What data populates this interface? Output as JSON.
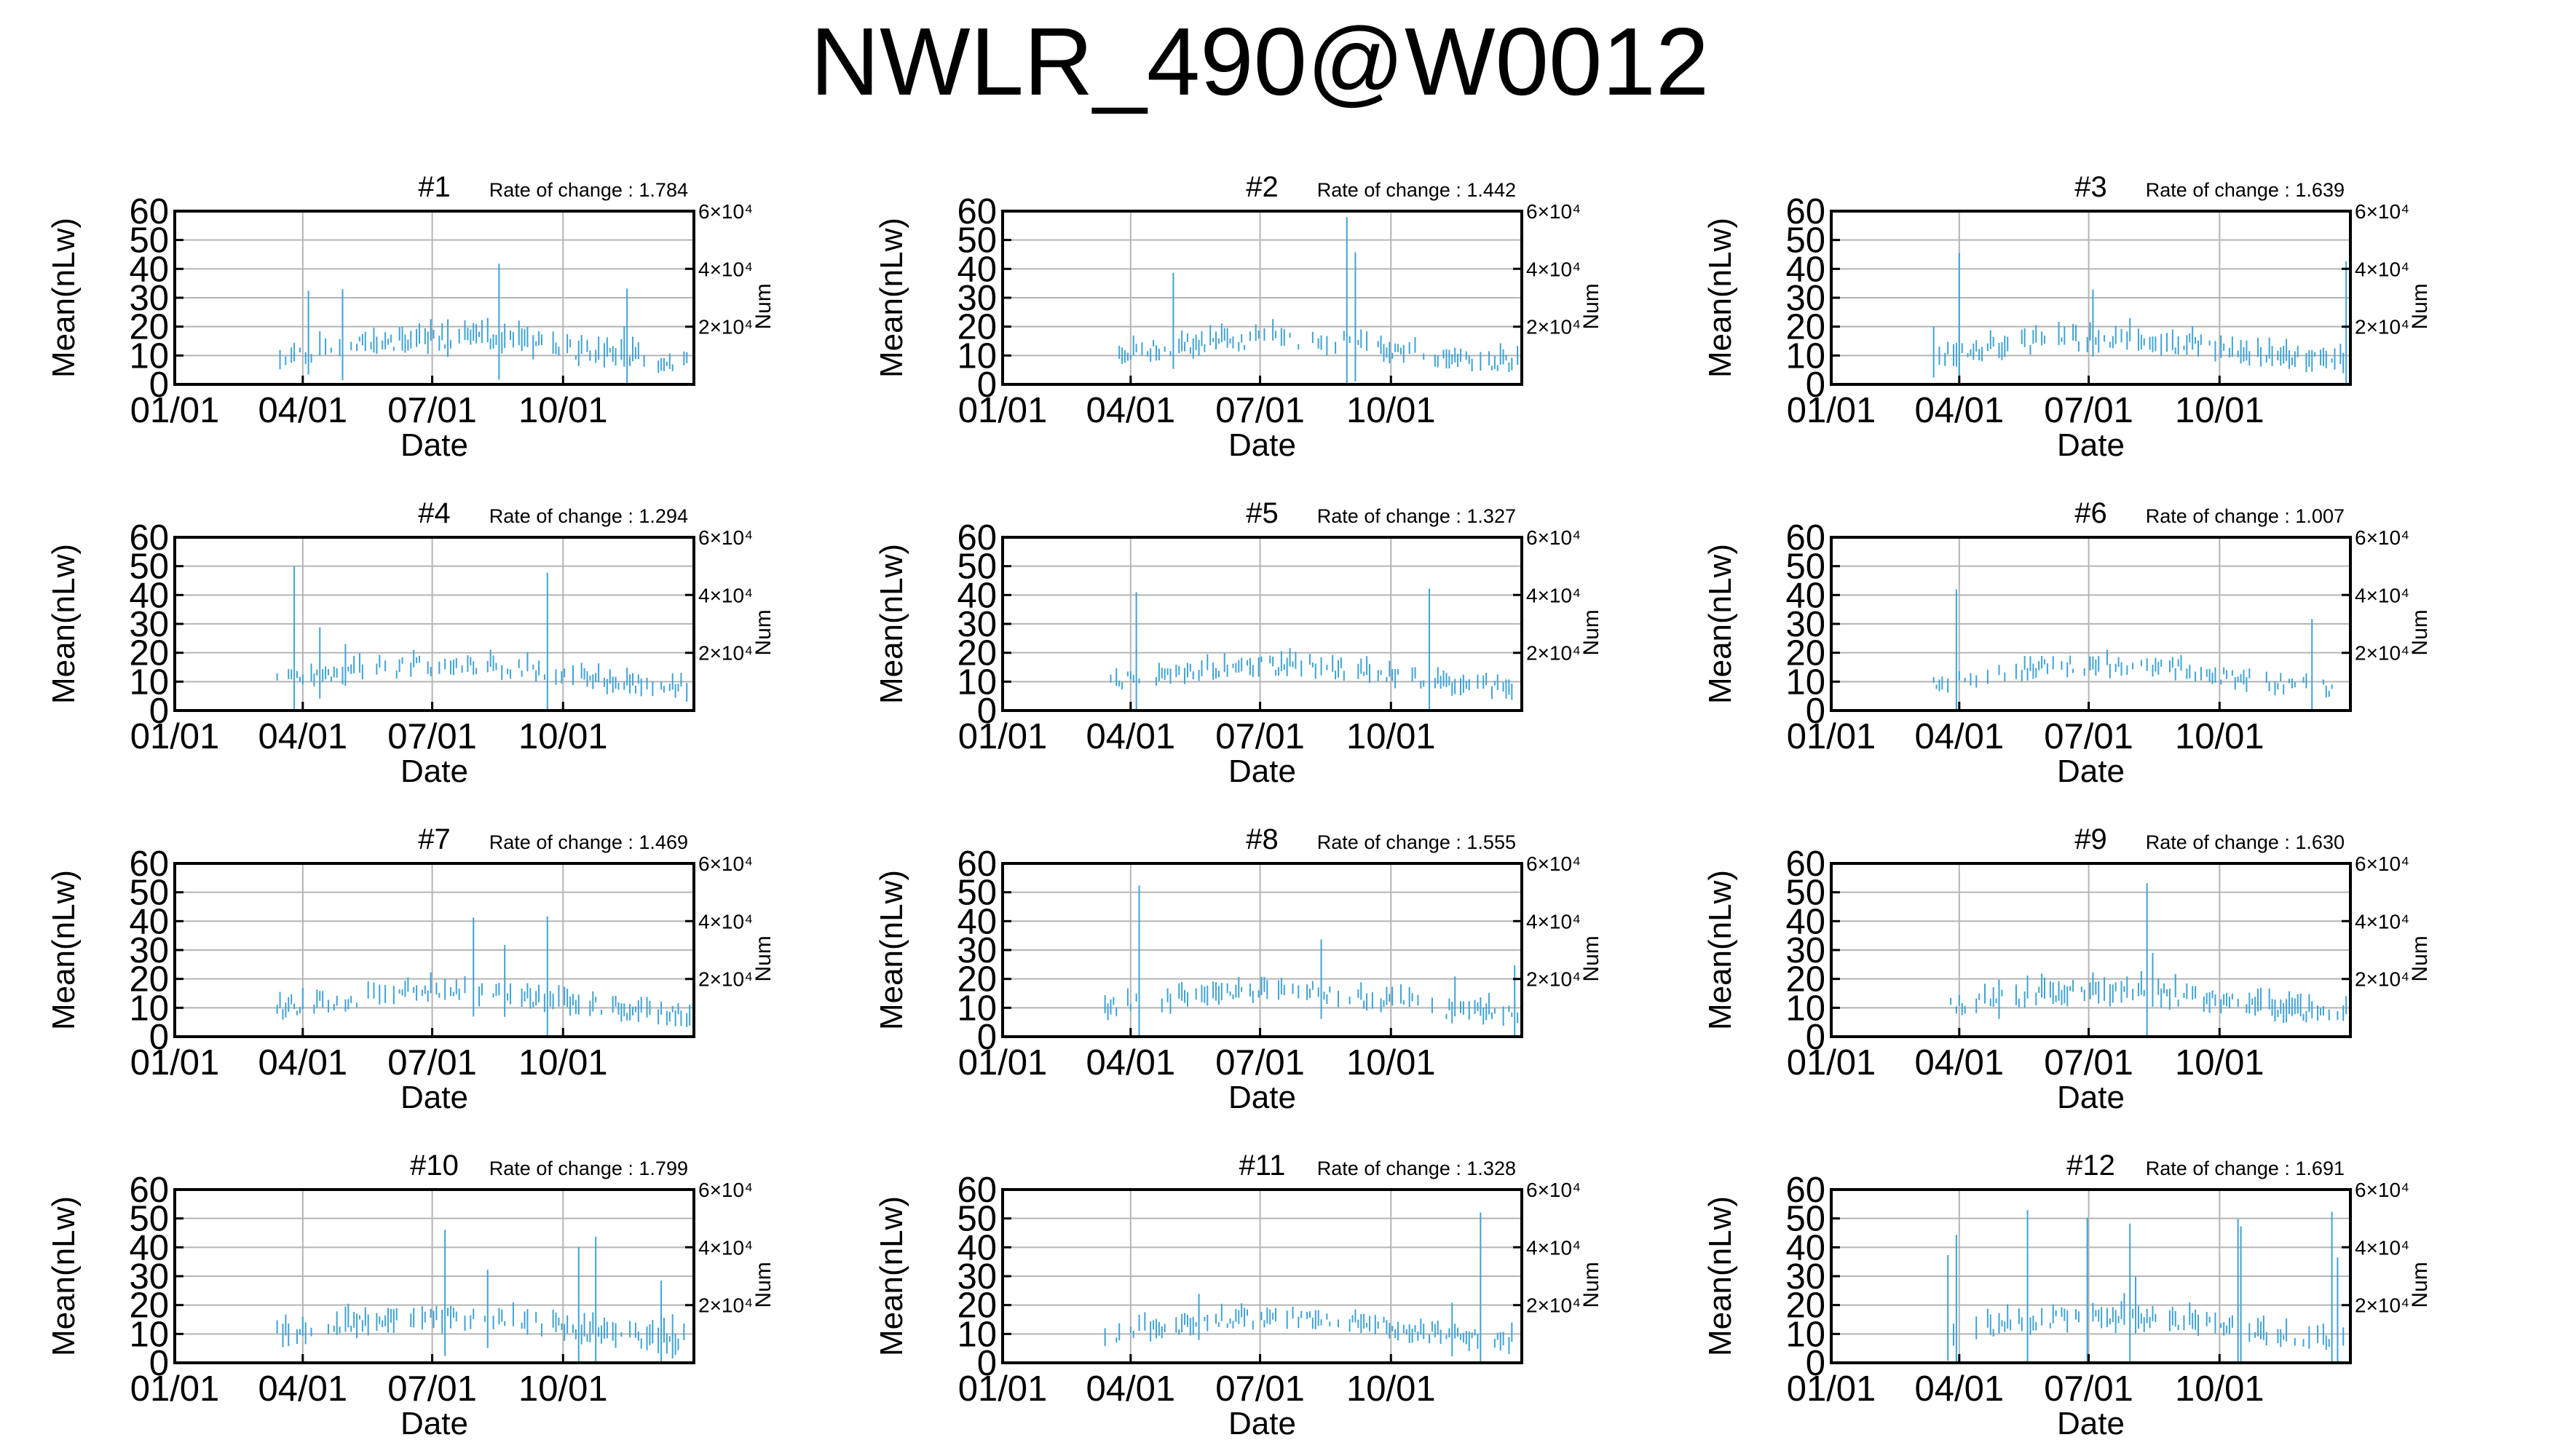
{
  "figure": {
    "title": "NWLR_490@W0012"
  },
  "colors": {
    "data": "#3fa3d6",
    "grid": "#b5b5b5",
    "frame": "#000000"
  },
  "chart_data": [
    {
      "type": "bar",
      "title": "#1",
      "rate": "Rate of change : 1.784",
      "xlabel": "Date",
      "ylabel": "Mean(nLw)",
      "y2label": "Num",
      "ylim": [
        0,
        60
      ],
      "xlim": [
        "01/01",
        "12/31"
      ],
      "xticks": [
        "01/01",
        "04/01",
        "07/01",
        "10/01"
      ],
      "yticks": [
        0,
        10,
        20,
        30,
        40,
        50,
        60
      ],
      "y2ticks": [
        "2×10⁴",
        "4×10⁴",
        "6×10⁴"
      ],
      "grid": true,
      "legend": "none",
      "seed": 11,
      "noise": 1.784,
      "start_day": 70
    },
    {
      "type": "bar",
      "title": "#2",
      "rate": "Rate of change : 1.442",
      "xlabel": "Date",
      "ylabel": "Mean(nLw)",
      "y2label": "Num",
      "ylim": [
        0,
        60
      ],
      "xlim": [
        "01/01",
        "12/31"
      ],
      "xticks": [
        "01/01",
        "04/01",
        "07/01",
        "10/01"
      ],
      "yticks": [
        0,
        10,
        20,
        30,
        40,
        50,
        60
      ],
      "y2ticks": [
        "2×10⁴",
        "4×10⁴",
        "6×10⁴"
      ],
      "grid": true,
      "legend": "none",
      "seed": 23,
      "noise": 1.442,
      "start_day": 80
    },
    {
      "type": "bar",
      "title": "#3",
      "rate": "Rate of change : 1.639",
      "xlabel": "Date",
      "ylabel": "Mean(nLw)",
      "y2label": "Num",
      "ylim": [
        0,
        60
      ],
      "xlim": [
        "01/01",
        "12/31"
      ],
      "xticks": [
        "01/01",
        "04/01",
        "07/01",
        "10/01"
      ],
      "yticks": [
        0,
        10,
        20,
        30,
        40,
        50,
        60
      ],
      "y2ticks": [
        "2×10⁴",
        "4×10⁴",
        "6×10⁴"
      ],
      "grid": true,
      "legend": "none",
      "seed": 37,
      "noise": 1.639,
      "start_day": 70
    },
    {
      "type": "bar",
      "title": "#4",
      "rate": "Rate of change : 1.294",
      "xlabel": "Date",
      "ylabel": "Mean(nLw)",
      "y2label": "Num",
      "ylim": [
        0,
        60
      ],
      "xlim": [
        "01/01",
        "12/31"
      ],
      "xticks": [
        "01/01",
        "04/01",
        "07/01",
        "10/01"
      ],
      "yticks": [
        0,
        10,
        20,
        30,
        40,
        50,
        60
      ],
      "y2ticks": [
        "2×10⁴",
        "4×10⁴",
        "6×10⁴"
      ],
      "grid": true,
      "legend": "none",
      "seed": 41,
      "noise": 1.294,
      "start_day": 70
    },
    {
      "type": "bar",
      "title": "#5",
      "rate": "Rate of change : 1.327",
      "xlabel": "Date",
      "ylabel": "Mean(nLw)",
      "y2label": "Num",
      "ylim": [
        0,
        60
      ],
      "xlim": [
        "01/01",
        "12/31"
      ],
      "xticks": [
        "01/01",
        "04/01",
        "07/01",
        "10/01"
      ],
      "yticks": [
        0,
        10,
        20,
        30,
        40,
        50,
        60
      ],
      "y2ticks": [
        "2×10⁴",
        "4×10⁴",
        "6×10⁴"
      ],
      "grid": true,
      "legend": "none",
      "seed": 53,
      "noise": 1.327,
      "start_day": 70
    },
    {
      "type": "bar",
      "title": "#6",
      "rate": "Rate of change : 1.007",
      "xlabel": "Date",
      "ylabel": "Mean(nLw)",
      "y2label": "Num",
      "ylim": [
        0,
        60
      ],
      "xlim": [
        "01/01",
        "12/31"
      ],
      "xticks": [
        "01/01",
        "04/01",
        "07/01",
        "10/01"
      ],
      "yticks": [
        0,
        10,
        20,
        30,
        40,
        50,
        60
      ],
      "y2ticks": [
        "2×10⁴",
        "4×10⁴",
        "6×10⁴"
      ],
      "grid": true,
      "legend": "none",
      "seed": 67,
      "noise": 1.007,
      "start_day": 70
    },
    {
      "type": "bar",
      "title": "#7",
      "rate": "Rate of change : 1.469",
      "xlabel": "Date",
      "ylabel": "Mean(nLw)",
      "y2label": "Num",
      "ylim": [
        0,
        60
      ],
      "xlim": [
        "01/01",
        "12/31"
      ],
      "xticks": [
        "01/01",
        "04/01",
        "07/01",
        "10/01"
      ],
      "yticks": [
        0,
        10,
        20,
        30,
        40,
        50,
        60
      ],
      "y2ticks": [
        "2×10⁴",
        "4×10⁴",
        "6×10⁴"
      ],
      "grid": true,
      "legend": "none",
      "seed": 71,
      "noise": 1.469,
      "start_day": 70
    },
    {
      "type": "bar",
      "title": "#8",
      "rate": "Rate of change : 1.555",
      "xlabel": "Date",
      "ylabel": "Mean(nLw)",
      "y2label": "Num",
      "ylim": [
        0,
        60
      ],
      "xlim": [
        "01/01",
        "12/31"
      ],
      "xticks": [
        "01/01",
        "04/01",
        "07/01",
        "10/01"
      ],
      "yticks": [
        0,
        10,
        20,
        30,
        40,
        50,
        60
      ],
      "y2ticks": [
        "2×10⁴",
        "4×10⁴",
        "6×10⁴"
      ],
      "grid": true,
      "legend": "none",
      "seed": 83,
      "noise": 1.555,
      "start_day": 70
    },
    {
      "type": "bar",
      "title": "#9",
      "rate": "Rate of change : 1.630",
      "xlabel": "Date",
      "ylabel": "Mean(nLw)",
      "y2label": "Num",
      "ylim": [
        0,
        60
      ],
      "xlim": [
        "01/01",
        "12/31"
      ],
      "xticks": [
        "01/01",
        "04/01",
        "07/01",
        "10/01"
      ],
      "yticks": [
        0,
        10,
        20,
        30,
        40,
        50,
        60
      ],
      "y2ticks": [
        "2×10⁴",
        "4×10⁴",
        "6×10⁴"
      ],
      "grid": true,
      "legend": "none",
      "seed": 97,
      "noise": 1.63,
      "start_day": 70
    },
    {
      "type": "bar",
      "title": "#10",
      "rate": "Rate of change : 1.799",
      "xlabel": "Date",
      "ylabel": "Mean(nLw)",
      "y2label": "Num",
      "ylim": [
        0,
        60
      ],
      "xlim": [
        "01/01",
        "12/31"
      ],
      "xticks": [
        "01/01",
        "04/01",
        "07/01",
        "10/01"
      ],
      "yticks": [
        0,
        10,
        20,
        30,
        40,
        50,
        60
      ],
      "y2ticks": [
        "2×10⁴",
        "4×10⁴",
        "6×10⁴"
      ],
      "grid": true,
      "legend": "none",
      "seed": 101,
      "noise": 1.799,
      "start_day": 70
    },
    {
      "type": "bar",
      "title": "#11",
      "rate": "Rate of change : 1.328",
      "xlabel": "Date",
      "ylabel": "Mean(nLw)",
      "y2label": "Num",
      "ylim": [
        0,
        60
      ],
      "xlim": [
        "01/01",
        "12/31"
      ],
      "xticks": [
        "01/01",
        "04/01",
        "07/01",
        "10/01"
      ],
      "yticks": [
        0,
        10,
        20,
        30,
        40,
        50,
        60
      ],
      "y2ticks": [
        "2×10⁴",
        "4×10⁴",
        "6×10⁴"
      ],
      "grid": true,
      "legend": "none",
      "seed": 113,
      "noise": 1.328,
      "start_day": 70
    },
    {
      "type": "bar",
      "title": "#12",
      "rate": "Rate of change : 1.691",
      "xlabel": "Date",
      "ylabel": "Mean(nLw)",
      "y2label": "Num",
      "ylim": [
        0,
        60
      ],
      "xlim": [
        "01/01",
        "12/31"
      ],
      "xticks": [
        "01/01",
        "04/01",
        "07/01",
        "10/01"
      ],
      "yticks": [
        0,
        10,
        20,
        30,
        40,
        50,
        60
      ],
      "y2ticks": [
        "2×10⁴",
        "4×10⁴",
        "6×10⁴"
      ],
      "grid": true,
      "legend": "none",
      "seed": 127,
      "noise": 1.691,
      "start_day": 80
    }
  ]
}
